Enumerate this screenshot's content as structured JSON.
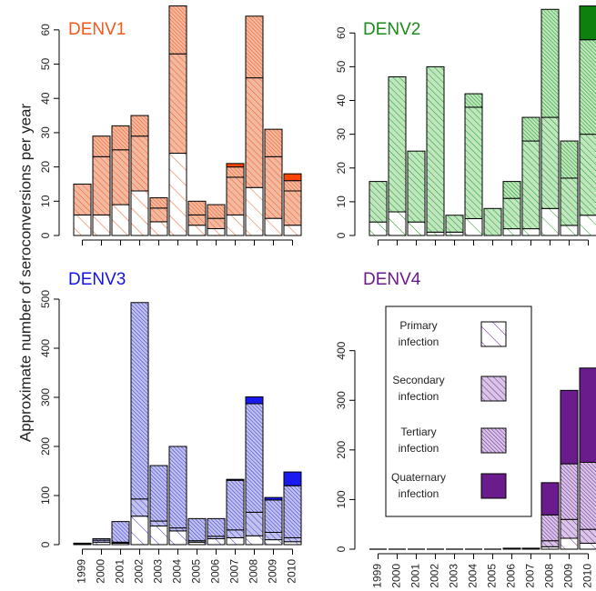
{
  "figure": {
    "ylabel": "Approximate number of seroconversions per year",
    "xcategories": [
      "1999",
      "2000",
      "2001",
      "2002",
      "2003",
      "2004",
      "2005",
      "2006",
      "2007",
      "2008",
      "2009",
      "2010"
    ]
  },
  "legend": {
    "items": [
      {
        "line1": "Primary",
        "line2": "infection",
        "stack_index": 0
      },
      {
        "line1": "Secondary",
        "line2": "infection",
        "stack_index": 1
      },
      {
        "line1": "Tertiary",
        "line2": "infection",
        "stack_index": 2
      },
      {
        "line1": "Quaternary",
        "line2": "infection",
        "stack_index": 3
      }
    ]
  },
  "chart_data": [
    {
      "type": "bar",
      "title": "DENV1",
      "title_color": "#f05a1e",
      "colors": {
        "fill": "#f2b9a0",
        "hatch": "#f05a1e",
        "solid": "#ff4500"
      },
      "categories": [
        "1999",
        "2000",
        "2001",
        "2002",
        "2003",
        "2004",
        "2005",
        "2006",
        "2007",
        "2008",
        "2009",
        "2010"
      ],
      "ylim": [
        0,
        65
      ],
      "yticks": [
        0,
        10,
        20,
        30,
        40,
        50,
        60
      ],
      "series": [
        {
          "values": [
            6,
            6,
            9,
            13,
            4,
            24,
            3,
            2,
            6,
            14,
            5,
            3
          ]
        },
        {
          "values": [
            9,
            17,
            16,
            16,
            4,
            29,
            3,
            3,
            11,
            32,
            18,
            10
          ]
        },
        {
          "values": [
            0,
            6,
            7,
            6,
            3,
            14,
            4,
            4,
            3,
            18,
            8,
            3
          ]
        },
        {
          "values": [
            0,
            0,
            0,
            0,
            0,
            0,
            0,
            0,
            1,
            0,
            0,
            2
          ]
        }
      ]
    },
    {
      "type": "bar",
      "title": "DENV2",
      "title_color": "#1a8c1a",
      "colors": {
        "fill": "#bfe6bf",
        "hatch": "#1f9a1f",
        "solid": "#0d800d"
      },
      "categories": [
        "1999",
        "2000",
        "2001",
        "2002",
        "2003",
        "2004",
        "2005",
        "2006",
        "2007",
        "2008",
        "2009",
        "2010"
      ],
      "ylim": [
        0,
        66
      ],
      "yticks": [
        0,
        10,
        20,
        30,
        40,
        50,
        60
      ],
      "series": [
        {
          "values": [
            4,
            7,
            4,
            1,
            1,
            5,
            0,
            2,
            2,
            8,
            3,
            6
          ]
        },
        {
          "values": [
            12,
            40,
            21,
            49,
            5,
            33,
            8,
            9,
            26,
            27,
            14,
            24
          ]
        },
        {
          "values": [
            0,
            0,
            0,
            0,
            0,
            4,
            0,
            5,
            7,
            32,
            11,
            28
          ]
        },
        {
          "values": [
            0,
            0,
            0,
            0,
            0,
            0,
            0,
            0,
            0,
            0,
            0,
            10
          ]
        }
      ]
    },
    {
      "type": "bar",
      "title": "DENV3",
      "title_color": "#1414e6",
      "colors": {
        "fill": "#c2c2ee",
        "hatch": "#3a3ad0",
        "solid": "#1a1aee"
      },
      "categories": [
        "1999",
        "2000",
        "2001",
        "2002",
        "2003",
        "2004",
        "2005",
        "2006",
        "2007",
        "2008",
        "2009",
        "2010"
      ],
      "ylim": [
        0,
        500
      ],
      "yticks": [
        0,
        100,
        200,
        300,
        400,
        500
      ],
      "series": [
        {
          "values": [
            1,
            5,
            3,
            58,
            38,
            28,
            5,
            12,
            14,
            18,
            10,
            6
          ]
        },
        {
          "values": [
            1,
            4,
            2,
            35,
            10,
            6,
            3,
            5,
            16,
            48,
            15,
            8
          ]
        },
        {
          "values": [
            1,
            3,
            42,
            400,
            113,
            166,
            45,
            36,
            101,
            221,
            66,
            106
          ]
        },
        {
          "values": [
            0,
            0,
            0,
            0,
            0,
            0,
            0,
            0,
            2,
            14,
            5,
            28
          ]
        }
      ]
    },
    {
      "type": "bar",
      "title": "DENV4",
      "title_color": "#6a1c8c",
      "colors": {
        "fill": "#d9c6e6",
        "hatch": "#6f2a96",
        "solid": "#6a1c8c"
      },
      "categories": [
        "1999",
        "2000",
        "2001",
        "2002",
        "2003",
        "2004",
        "2005",
        "2006",
        "2007",
        "2008",
        "2009",
        "2010"
      ],
      "ylim": [
        0,
        480
      ],
      "yticks": [
        0,
        100,
        200,
        300,
        400
      ],
      "series": [
        {
          "values": [
            0,
            0,
            0,
            0,
            0,
            0,
            0,
            0,
            1,
            5,
            22,
            12
          ]
        },
        {
          "values": [
            0,
            0,
            0,
            0,
            0,
            0,
            0,
            1,
            1,
            12,
            38,
            28
          ]
        },
        {
          "values": [
            0,
            0,
            0,
            0,
            0,
            0,
            0,
            1,
            0,
            52,
            112,
            135
          ]
        },
        {
          "values": [
            0,
            0,
            0,
            0,
            0,
            0,
            0,
            0,
            0,
            65,
            148,
            190
          ]
        }
      ]
    }
  ]
}
